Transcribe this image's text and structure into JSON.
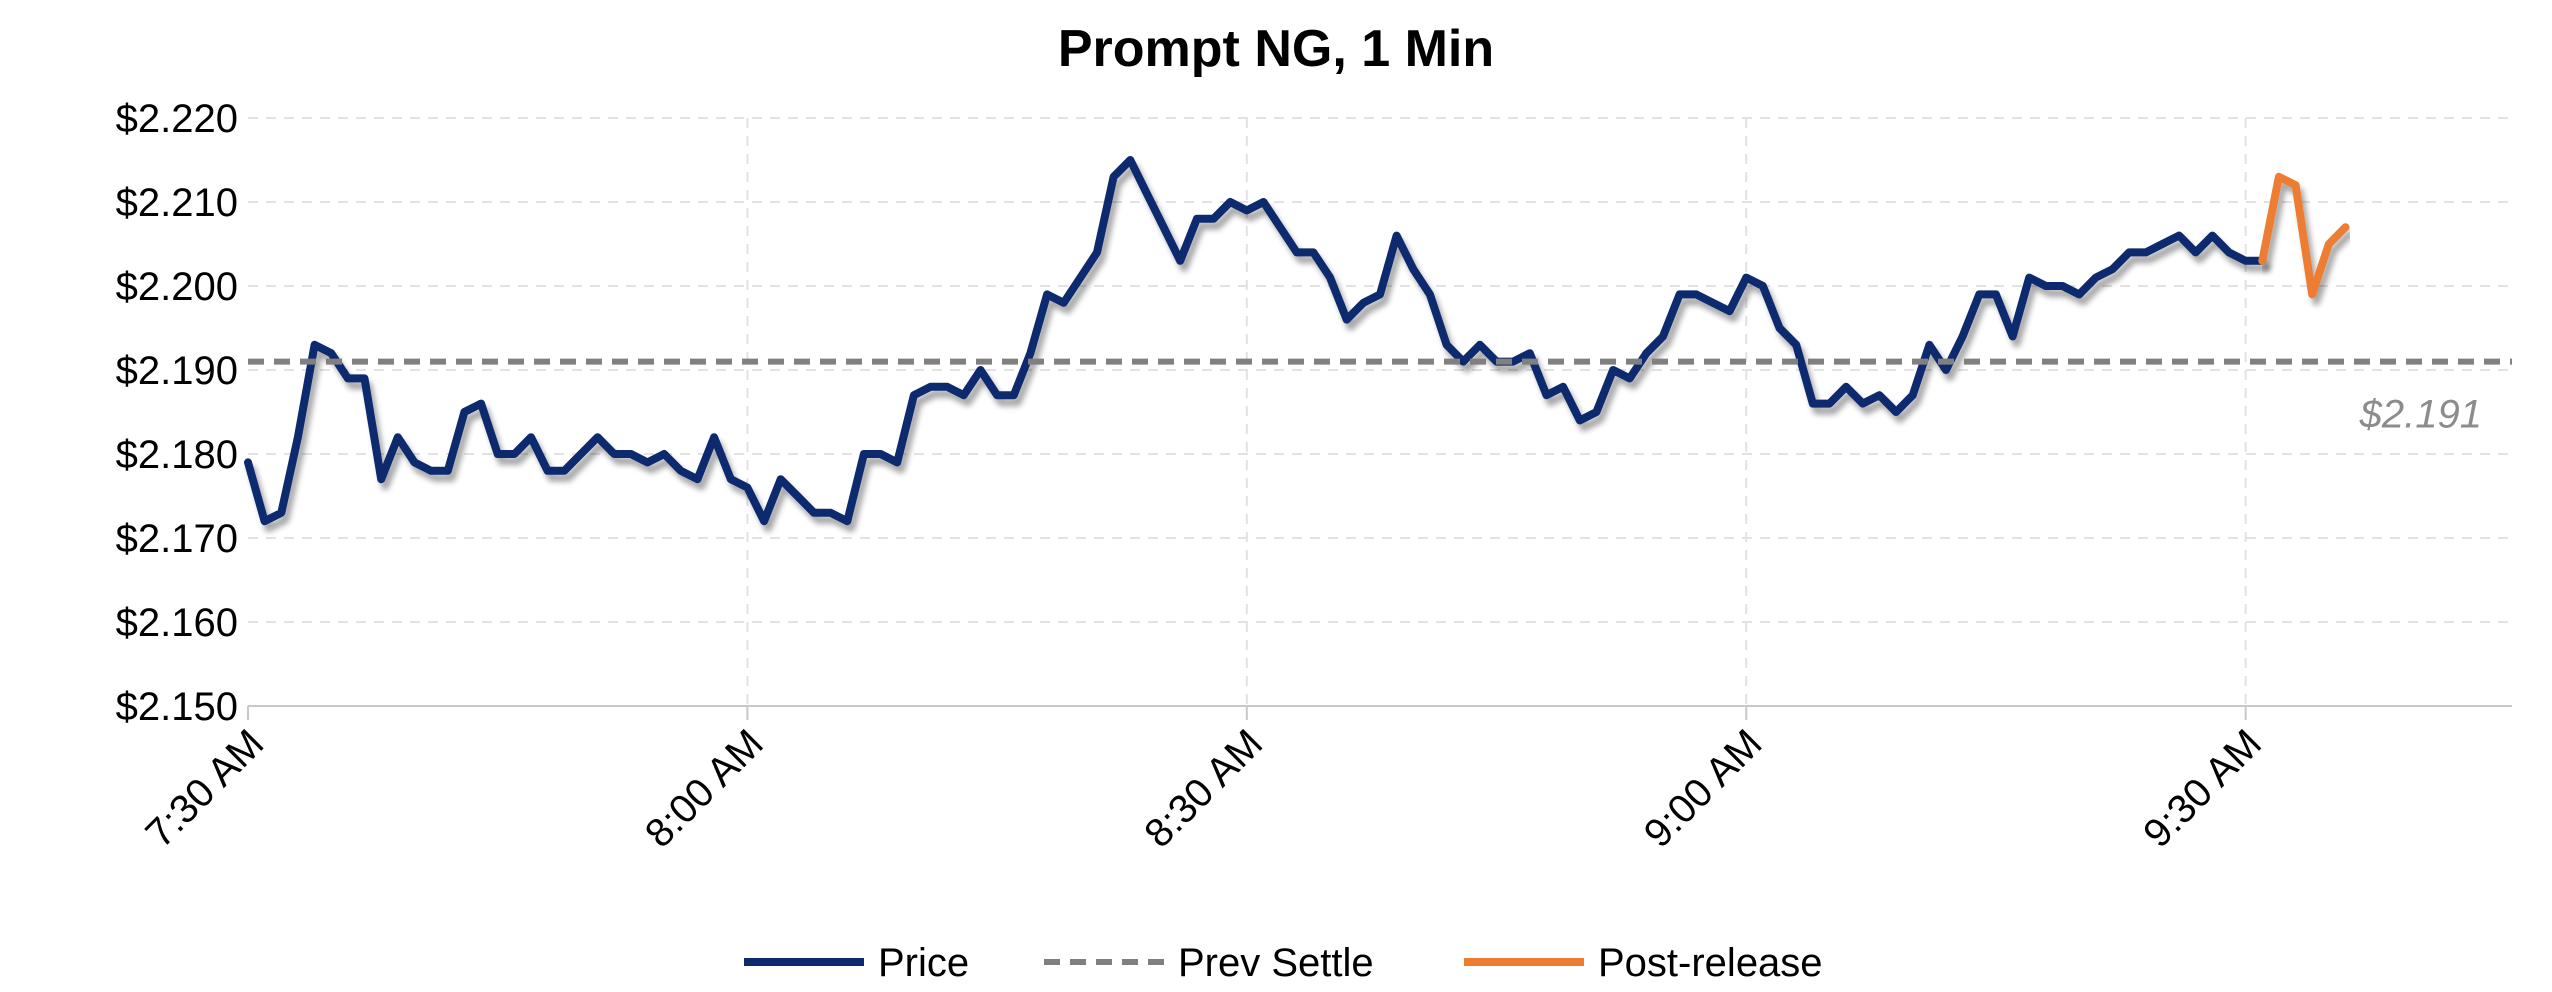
{
  "chart_data": {
    "type": "line",
    "title": "Prompt NG, 1 Min",
    "xlabel": "",
    "ylabel": "",
    "x_ticks": [
      "7:30 AM",
      "8:00 AM",
      "8:30 AM",
      "9:00 AM",
      "9:30 AM"
    ],
    "y_ticks": [
      "$2.220",
      "$2.210",
      "$2.200",
      "$2.190",
      "$2.180",
      "$2.170",
      "$2.160",
      "$2.150"
    ],
    "ylim": [
      2.15,
      2.22
    ],
    "x_range_minutes_after_730": [
      0,
      136
    ],
    "grid": true,
    "legend_position": "bottom",
    "series": [
      {
        "name": "Price",
        "color": "#0d2a6e",
        "x": [
          0,
          1,
          2,
          3,
          4,
          5,
          6,
          7,
          8,
          9,
          10,
          11,
          12,
          13,
          14,
          15,
          16,
          17,
          18,
          19,
          20,
          21,
          22,
          23,
          24,
          25,
          26,
          27,
          28,
          29,
          30,
          31,
          32,
          33,
          34,
          35,
          36,
          37,
          38,
          39,
          40,
          41,
          42,
          43,
          44,
          45,
          46,
          47,
          48,
          49,
          50,
          51,
          52,
          53,
          54,
          55,
          56,
          57,
          58,
          59,
          60,
          61,
          62,
          63,
          64,
          65,
          66,
          67,
          68,
          69,
          70,
          71,
          72,
          73,
          74,
          75,
          76,
          77,
          78,
          79,
          80,
          81,
          82,
          83,
          84,
          85,
          86,
          87,
          88,
          89,
          90,
          91,
          92,
          93,
          94,
          95,
          96,
          97,
          98,
          99,
          100,
          101,
          102,
          103,
          104,
          105,
          106,
          107,
          108,
          109,
          110,
          111,
          112,
          113,
          114,
          115,
          116,
          117,
          118,
          119,
          120,
          121
        ],
        "values": [
          2.179,
          2.172,
          2.173,
          2.182,
          2.193,
          2.192,
          2.189,
          2.189,
          2.177,
          2.182,
          2.179,
          2.178,
          2.178,
          2.185,
          2.186,
          2.18,
          2.18,
          2.182,
          2.178,
          2.178,
          2.18,
          2.182,
          2.18,
          2.18,
          2.179,
          2.18,
          2.178,
          2.177,
          2.182,
          2.177,
          2.176,
          2.172,
          2.177,
          2.175,
          2.173,
          2.173,
          2.172,
          2.18,
          2.18,
          2.179,
          2.187,
          2.188,
          2.188,
          2.187,
          2.19,
          2.187,
          2.187,
          2.192,
          2.199,
          2.198,
          2.201,
          2.204,
          2.213,
          2.215,
          2.211,
          2.207,
          2.203,
          2.208,
          2.208,
          2.21,
          2.209,
          2.21,
          2.207,
          2.204,
          2.204,
          2.201,
          2.196,
          2.198,
          2.199,
          2.206,
          2.202,
          2.199,
          2.193,
          2.191,
          2.193,
          2.191,
          2.191,
          2.192,
          2.187,
          2.188,
          2.184,
          2.185,
          2.19,
          2.189,
          2.192,
          2.194,
          2.199,
          2.199,
          2.198,
          2.197,
          2.201,
          2.2,
          2.195,
          2.193,
          2.186,
          2.186,
          2.188,
          2.186,
          2.187,
          2.185,
          2.187,
          2.193,
          2.19,
          2.194,
          2.199,
          2.199,
          2.194,
          2.201,
          2.2,
          2.2,
          2.199,
          2.201,
          2.202,
          2.204,
          2.204,
          2.205,
          2.206,
          2.204,
          2.206,
          2.204,
          2.203,
          2.203
        ]
      },
      {
        "name": "Prev Settle",
        "color": "#808080",
        "constant": 2.191
      },
      {
        "name": "Post-release",
        "color": "#ed7d31",
        "x": [
          121,
          122,
          123,
          124,
          125,
          126
        ],
        "values": [
          2.203,
          2.213,
          2.212,
          2.199,
          2.205,
          2.207
        ]
      }
    ],
    "annotations": [
      {
        "text": "$2.191",
        "value": 2.191
      }
    ]
  }
}
